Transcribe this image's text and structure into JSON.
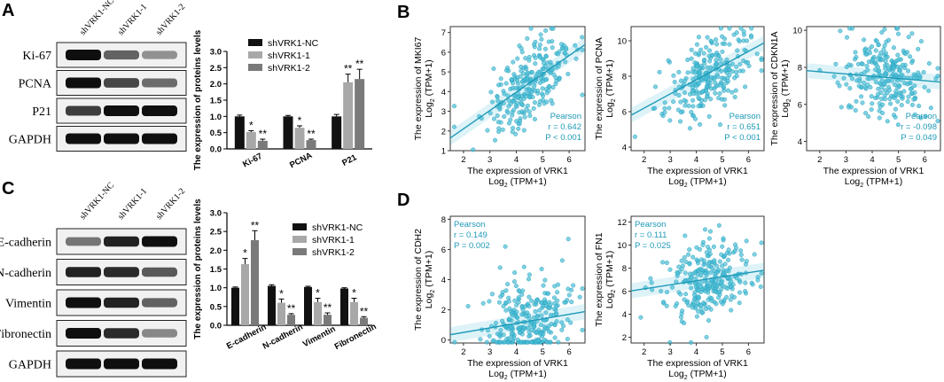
{
  "figure": {
    "panels": {
      "A": "A",
      "B": "B",
      "C": "C",
      "D": "D"
    }
  },
  "colors": {
    "nc": "#111111",
    "s1": "#a8a8a8",
    "s2": "#7a7a7a",
    "scatter": "#48bdd6",
    "scatter_edge": "#1f9ab8"
  },
  "blot_A": {
    "lanes": [
      "shVRK1-NC",
      "shVRK1-1",
      "shVRK1-2"
    ],
    "rows": [
      "Ki-67",
      "PCNA",
      "P21",
      "GAPDH"
    ],
    "intensity": [
      [
        1.0,
        0.55,
        0.3
      ],
      [
        1.0,
        0.7,
        0.5
      ],
      [
        0.75,
        1.0,
        1.0
      ],
      [
        1.0,
        1.0,
        1.0
      ]
    ]
  },
  "blot_C": {
    "lanes": [
      "shVRK1-NC",
      "shVRK1-1",
      "shVRK1-2"
    ],
    "rows": [
      "E-cadherin",
      "N-cadherin",
      "Vimentin",
      "Fibronectin",
      "GAPDH"
    ],
    "intensity": [
      [
        0.45,
        0.9,
        1.0
      ],
      [
        0.9,
        0.85,
        0.6
      ],
      [
        1.0,
        0.9,
        0.55
      ],
      [
        1.0,
        0.85,
        0.35
      ],
      [
        1.0,
        1.0,
        1.0
      ]
    ]
  },
  "chart_data": [
    {
      "id": "barA",
      "type": "bar",
      "ylabel": "The expression of proteins levels",
      "categories": [
        "Ki-67",
        "PCNA",
        "P21"
      ],
      "ylim": [
        0,
        3.0
      ],
      "yticks": [
        "0.0",
        "0.5",
        "1.0",
        "1.5",
        "2.0",
        "2.5",
        "3.0"
      ],
      "series": [
        {
          "name": "shVRK1-NC",
          "values": [
            1.0,
            1.0,
            1.0
          ],
          "err": [
            0.04,
            0.03,
            0.06
          ],
          "sig": [
            "",
            "",
            ""
          ]
        },
        {
          "name": "shVRK1-1",
          "values": [
            0.52,
            0.65,
            2.05
          ],
          "err": [
            0.04,
            0.06,
            0.25
          ],
          "sig": [
            "*",
            "*",
            "**"
          ]
        },
        {
          "name": "shVRK1-2",
          "values": [
            0.25,
            0.27,
            2.15
          ],
          "err": [
            0.05,
            0.03,
            0.3
          ],
          "sig": [
            "**",
            "**",
            "**"
          ]
        }
      ]
    },
    {
      "id": "barC",
      "type": "bar",
      "ylabel": "The expression of proteins levels",
      "categories": [
        "E-cadherin",
        "N-cadherin",
        "Vimentin",
        "Fibronectin"
      ],
      "ylim": [
        0,
        3.0
      ],
      "yticks": [
        "0.0",
        "0.5",
        "1.0",
        "1.5",
        "2.0",
        "2.5",
        "3.0"
      ],
      "series": [
        {
          "name": "shVRK1-NC",
          "values": [
            1.0,
            1.05,
            1.02,
            0.98
          ],
          "err": [
            0.02,
            0.03,
            0.02,
            0.02
          ],
          "sig": [
            "",
            "",
            "",
            ""
          ]
        },
        {
          "name": "shVRK1-1",
          "values": [
            1.63,
            0.6,
            0.62,
            0.62
          ],
          "err": [
            0.15,
            0.1,
            0.1,
            0.1
          ],
          "sig": [
            "*",
            "*",
            "*",
            "*"
          ]
        },
        {
          "name": "shVRK1-2",
          "values": [
            2.27,
            0.28,
            0.28,
            0.2
          ],
          "err": [
            0.25,
            0.03,
            0.05,
            0.03
          ],
          "sig": [
            "**",
            "**",
            "**",
            "**"
          ]
        }
      ]
    },
    {
      "id": "scMKI67",
      "type": "scatter",
      "seed": 11,
      "n": 260,
      "ylabel1": "The expression of MKI67",
      "ylabel2": "Log",
      "xlabel1": "The expression of VRK1",
      "xlabel2": "Log",
      "xlim": [
        1.5,
        6.6
      ],
      "ylim": [
        1,
        7.3
      ],
      "xticks": [
        2,
        3,
        4,
        5,
        6
      ],
      "yticks": [
        1,
        2,
        3,
        4,
        5,
        6,
        7
      ],
      "fit": {
        "slope": 0.93,
        "intercept": 0.25
      },
      "stats": {
        "label": "Pearson",
        "r": "r = 0.642",
        "p": "P < 0.001",
        "pos": "bottom-right"
      }
    },
    {
      "id": "scPCNA",
      "type": "scatter",
      "seed": 23,
      "n": 260,
      "ylabel1": "The expression of PCNA",
      "ylabel2": "Log",
      "xlabel1": "The expression of VRK1",
      "xlabel2": "Log",
      "xlim": [
        1.5,
        6.6
      ],
      "ylim": [
        3.8,
        10.8
      ],
      "xticks": [
        2,
        3,
        4,
        5,
        6
      ],
      "yticks": [
        4,
        6,
        8,
        10
      ],
      "fit": {
        "slope": 0.8,
        "intercept": 4.6
      },
      "stats": {
        "label": "Pearson",
        "r": "r = 0.651",
        "p": "P < 0.001",
        "pos": "bottom-right"
      }
    },
    {
      "id": "scCDKN1A",
      "type": "scatter",
      "seed": 37,
      "n": 260,
      "ylabel1": "The expression of CDKN1A",
      "ylabel2": "Log",
      "xlabel1": "The expression of VRK1",
      "xlabel2": "Log",
      "xlim": [
        1.5,
        6.6
      ],
      "ylim": [
        3.5,
        10.2
      ],
      "xticks": [
        2,
        3,
        4,
        5,
        6
      ],
      "yticks": [
        4,
        6,
        8,
        10
      ],
      "fit": {
        "slope": -0.12,
        "intercept": 8.0
      },
      "stats": {
        "label": "Pearson",
        "r": "r = -0.098",
        "p": "P = 0.049",
        "pos": "bottom-right"
      }
    },
    {
      "id": "scCDH2",
      "type": "scatter",
      "seed": 53,
      "n": 280,
      "ylabel1": "The expression of CDH2",
      "ylabel2": "Log",
      "xlabel1": "The expression of VRK1",
      "xlabel2": "Log",
      "xlim": [
        1.5,
        6.6
      ],
      "ylim": [
        -0.2,
        8.2
      ],
      "xticks": [
        2,
        3,
        4,
        5,
        6
      ],
      "yticks": [
        0,
        2,
        4,
        6,
        8
      ],
      "fit": {
        "slope": 0.3,
        "intercept": -0.1
      },
      "stats": {
        "label": "Pearson",
        "r": "r = 0.149",
        "p": "P = 0.002",
        "pos": "top-left"
      }
    },
    {
      "id": "scFN1",
      "type": "scatter",
      "seed": 71,
      "n": 280,
      "ylabel1": "The expression of FN1",
      "ylabel2": "Log",
      "xlabel1": "The expression of VRK1",
      "xlabel2": "Log",
      "xlim": [
        1.5,
        6.6
      ],
      "ylim": [
        1.5,
        12.5
      ],
      "xticks": [
        2,
        3,
        4,
        5,
        6
      ],
      "yticks": [
        2,
        4,
        6,
        8,
        10,
        12
      ],
      "fit": {
        "slope": 0.35,
        "intercept": 5.5
      },
      "stats": {
        "label": "Pearson",
        "r": "r = 0.111",
        "p": "P = 0.025",
        "pos": "top-left"
      }
    }
  ],
  "units": {
    "log_base": "2",
    "tpm": "(TPM+1)"
  }
}
